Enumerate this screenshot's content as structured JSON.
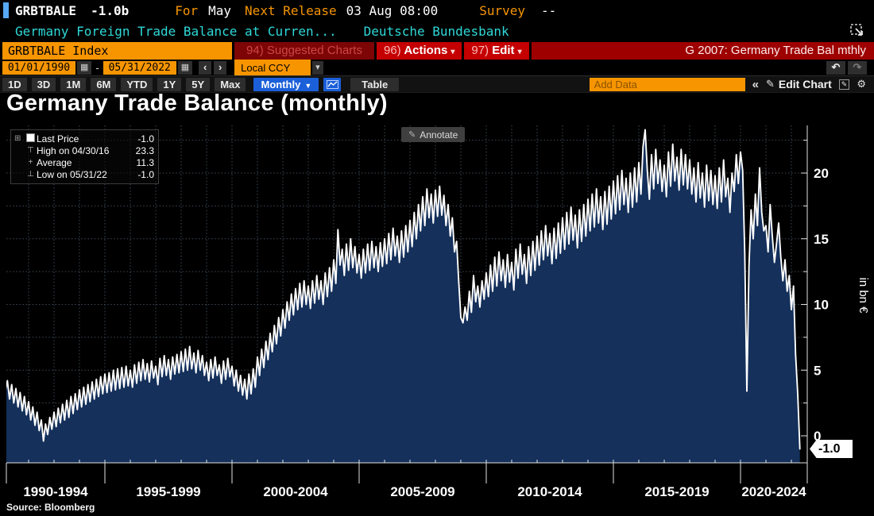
{
  "header": {
    "security": "GRBTBALE",
    "last_value": "-1.0b",
    "for_label": "For",
    "for_value": "May",
    "next_release_label": "Next Release",
    "next_release_value": "03 Aug 08:00",
    "survey_label": "Survey",
    "survey_value": "--",
    "description": "Germany Foreign Trade Balance at Curren...",
    "source_org": "Deutsche Bundesbank"
  },
  "command_bar": {
    "ticker_field": "GRBTBALE Index",
    "suggested_charts": "94) Suggested Charts",
    "actions_num": "96)",
    "actions_label": "Actions",
    "edit_num": "97)",
    "edit_label": "Edit",
    "chart_tag": "G 2007: Germany Trade Bal mthly"
  },
  "range_bar": {
    "start_date": "01/01/1990",
    "separator": "-",
    "end_date": "05/31/2022",
    "currency": "Local CCY"
  },
  "toolbar": {
    "periods": [
      "1D",
      "3D",
      "1M",
      "6M",
      "YTD",
      "1Y",
      "5Y",
      "Max"
    ],
    "frequency": "Monthly",
    "table_label": "Table",
    "add_data_placeholder": "Add Data",
    "edit_chart_label": "Edit Chart"
  },
  "icons": {
    "calendar": "▦",
    "chevron_left": "‹",
    "chevron_right": "›",
    "dropdown_small": "▾",
    "dropdown": "▼",
    "undo": "↶",
    "redo": "↷",
    "collapse": "«",
    "pencil": "✎",
    "gear": "⚙",
    "legend_tree": "⊞",
    "legend_high": "⊤",
    "legend_avg": "+",
    "legend_low": "⊥"
  },
  "chart": {
    "title": "Germany Trade Balance (monthly)",
    "annotate_label": "Annotate",
    "legend": [
      {
        "label": "Last Price",
        "value": "-1.0"
      },
      {
        "label": "High on 04/30/16",
        "value": "23.3"
      },
      {
        "label": "Average",
        "value": "11.3"
      },
      {
        "label": "Low on 05/31/22",
        "value": "-1.0"
      }
    ],
    "last_price_flag": "-1.0",
    "source": "Source: Bloomberg"
  },
  "chart_data": {
    "type": "area",
    "series_name": "GRBTBALE Index",
    "title": "Germany Trade Balance (monthly)",
    "ylabel": "in bn €",
    "frequency": "monthly",
    "start_year": 1990,
    "end_date": "05/31/2022",
    "ylim": [
      -2.5,
      23.6
    ],
    "y_ticks": [
      0,
      5,
      10,
      15,
      20
    ],
    "y_minor_step": 2.5,
    "x_labels": [
      "1990-1994",
      "1995-1999",
      "2000-2004",
      "2005-2009",
      "2010-2014",
      "2015-2019",
      "2020-2024"
    ],
    "x_section_years": [
      1995,
      2000,
      2005,
      2010,
      2015,
      2020
    ],
    "high": {
      "date": "04/30/16",
      "value": 23.3
    },
    "low": {
      "date": "05/31/22",
      "value": -1.0
    },
    "average": 11.3,
    "last": -1.0,
    "grid": true,
    "legend_position": "top-left",
    "colors": {
      "line": "#ffffff",
      "fill": "#14305b",
      "background": "#000000"
    },
    "values": [
      5.0,
      4.0,
      4.6,
      3.6,
      4.4,
      3.4,
      4.2,
      3.2,
      4.0,
      3.0,
      3.8,
      3.0,
      4.6,
      3.4,
      4.2,
      2.8,
      3.9,
      2.5,
      3.6,
      2.2,
      3.3,
      1.9,
      3.0,
      1.6,
      2.6,
      1.2,
      2.2,
      0.8,
      1.8,
      0.4,
      1.2,
      -0.4,
      0.9,
      0.1,
      1.4,
      0.5,
      1.8,
      0.7,
      2.1,
      1.0,
      2.4,
      1.2,
      2.7,
      1.4,
      3.0,
      1.7,
      3.2,
      2.0,
      3.5,
      2.2,
      3.7,
      2.4,
      3.9,
      2.6,
      4.1,
      2.8,
      4.3,
      3.0,
      4.5,
      3.2,
      4.7,
      3.3,
      4.8,
      3.4,
      5.0,
      3.5,
      5.1,
      3.6,
      5.2,
      3.7,
      5.3,
      3.8,
      5.0,
      3.7,
      5.4,
      4.0,
      5.6,
      4.2,
      5.8,
      4.3,
      5.5,
      4.1,
      5.7,
      4.4,
      5.3,
      3.9,
      5.9,
      4.5,
      6.1,
      4.6,
      5.8,
      4.3,
      6.0,
      4.7,
      6.2,
      4.8,
      6.4,
      4.9,
      6.6,
      5.0,
      6.8,
      5.1,
      6.3,
      4.8,
      6.5,
      5.0,
      6.1,
      4.6,
      5.6,
      4.2,
      5.8,
      4.4,
      6.0,
      4.6,
      5.4,
      4.0,
      5.7,
      4.3,
      5.9,
      4.5,
      5.3,
      3.8,
      5.0,
      3.4,
      4.6,
      3.1,
      4.3,
      2.8,
      4.7,
      3.2,
      5.1,
      3.7,
      6.0,
      4.6,
      6.6,
      5.2,
      7.2,
      5.8,
      7.8,
      6.4,
      8.4,
      7.0,
      9.0,
      7.6,
      9.6,
      8.2,
      10.2,
      8.8,
      10.8,
      9.2,
      11.2,
      9.6,
      11.6,
      9.8,
      11.8,
      10.0,
      11.4,
      9.7,
      11.8,
      10.1,
      12.2,
      10.4,
      11.8,
      10.0,
      12.4,
      10.6,
      12.8,
      11.0,
      13.4,
      11.6,
      15.7,
      13.0,
      14.2,
      12.2,
      14.6,
      12.6,
      15.0,
      12.8,
      14.4,
      12.4,
      13.8,
      12.0,
      14.2,
      12.4,
      14.6,
      12.6,
      14.8,
      12.8,
      14.4,
      12.5,
      14.7,
      12.9,
      15.0,
      13.1,
      15.4,
      13.4,
      15.8,
      13.7,
      15.2,
      13.2,
      15.6,
      13.6,
      16.0,
      14.0,
      16.4,
      14.4,
      17.0,
      15.0,
      17.6,
      15.6,
      18.2,
      16.0,
      18.8,
      16.6,
      18.4,
      16.2,
      18.7,
      16.7,
      19.0,
      16.8,
      18.3,
      16.0,
      17.6,
      15.2,
      16.6,
      14.0,
      14.8,
      11.8,
      9.0,
      8.6,
      9.8,
      8.8,
      11.0,
      9.4,
      12.2,
      10.2,
      11.4,
      9.8,
      11.8,
      10.4,
      12.4,
      10.6,
      13.0,
      11.0,
      13.6,
      11.4,
      14.0,
      11.8,
      13.4,
      11.3,
      13.8,
      11.7,
      13.2,
      11.1,
      14.2,
      12.0,
      14.6,
      12.3,
      13.8,
      11.6,
      14.4,
      12.2,
      14.8,
      12.6,
      15.2,
      13.0,
      15.6,
      13.4,
      16.0,
      13.7,
      15.4,
      13.1,
      15.8,
      13.5,
      16.2,
      13.9,
      16.6,
      14.2,
      17.0,
      14.6,
      17.4,
      14.9,
      16.8,
      14.3,
      17.2,
      14.8,
      17.6,
      15.2,
      18.0,
      15.6,
      18.4,
      15.9,
      18.8,
      16.2,
      18.2,
      15.7,
      18.6,
      16.1,
      19.0,
      16.5,
      19.4,
      16.9,
      19.8,
      17.2,
      20.2,
      17.6,
      19.6,
      17.0,
      20.0,
      17.4,
      20.4,
      17.8,
      20.8,
      18.4,
      22.0,
      23.3,
      20.2,
      18.0,
      21.4,
      18.8,
      21.8,
      19.2,
      21.0,
      18.6,
      20.6,
      18.2,
      21.6,
      19.0,
      22.2,
      19.4,
      21.2,
      18.7,
      21.8,
      19.1,
      21.4,
      18.8,
      21.0,
      18.4,
      20.4,
      17.8,
      20.8,
      18.1,
      20.0,
      17.4,
      20.6,
      17.9,
      20.2,
      17.6,
      19.8,
      17.3,
      20.4,
      17.8,
      21.0,
      18.2,
      19.6,
      17.0,
      20.0,
      18.6,
      21.4,
      19.2,
      21.6,
      20.2,
      14.0,
      3.4,
      13.0,
      17.2,
      15.0,
      18.4,
      16.0,
      20.4,
      17.0,
      15.6,
      16.0,
      14.0,
      17.6,
      15.2,
      13.2,
      14.6,
      16.2,
      13.6,
      11.8,
      13.4,
      11.0,
      12.2,
      9.6,
      11.4,
      6.2,
      3.2,
      -1.0
    ]
  }
}
